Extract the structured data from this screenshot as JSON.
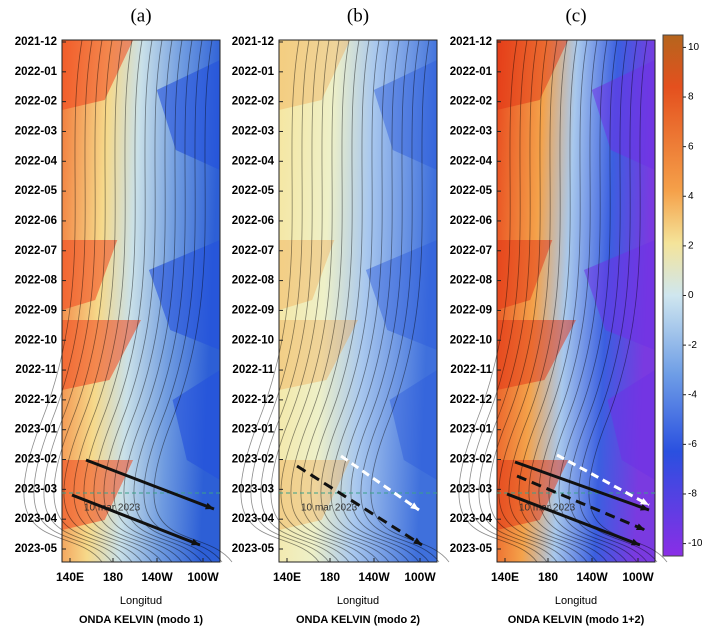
{
  "chart_data": [
    {
      "type": "heatmap",
      "title": "(a)",
      "x_label": "Longitud",
      "caption": "ONDA KELVIN (modo 1)",
      "annotation": "10 mar 2023",
      "categories": [
        "2021-12",
        "2022-01",
        "2022-02",
        "2022-03",
        "2022-04",
        "2022-05",
        "2022-06",
        "2022-07",
        "2022-08",
        "2022-09",
        "2022-10",
        "2022-11",
        "2022-12",
        "2023-01",
        "2023-02",
        "2023-03",
        "2023-04",
        "2023-05"
      ],
      "x_categories": [
        "140E",
        "180",
        "140W",
        "100W"
      ]
    },
    {
      "type": "heatmap",
      "title": "(b)",
      "x_label": "Longitud",
      "caption": "ONDA KELVIN (modo 2)",
      "annotation": "10 mar 2023",
      "categories": [
        "2021-12",
        "2022-01",
        "2022-02",
        "2022-03",
        "2022-04",
        "2022-05",
        "2022-06",
        "2022-07",
        "2022-08",
        "2022-09",
        "2022-10",
        "2022-11",
        "2022-12",
        "2023-01",
        "2023-02",
        "2023-03",
        "2023-04",
        "2023-05"
      ],
      "x_categories": [
        "140E",
        "180",
        "140W",
        "100W"
      ]
    },
    {
      "type": "heatmap",
      "title": "(c)",
      "x_label": "Longitud",
      "caption": "ONDA KELVIN (modo 1+2)",
      "annotation": "10 mar 2023",
      "categories": [
        "2021-12",
        "2022-01",
        "2022-02",
        "2022-03",
        "2022-04",
        "2022-05",
        "2022-06",
        "2022-07",
        "2022-08",
        "2022-09",
        "2022-10",
        "2022-11",
        "2022-12",
        "2023-01",
        "2023-02",
        "2023-03",
        "2023-04",
        "2023-05"
      ],
      "x_categories": [
        "140E",
        "180",
        "140W",
        "100W"
      ]
    },
    {
      "type": "colorbar",
      "ylim": [
        -10.5,
        10.5
      ],
      "yticks": [
        10,
        8,
        6,
        4,
        2,
        0,
        -2,
        -4,
        -6,
        -8,
        -10
      ]
    }
  ]
}
